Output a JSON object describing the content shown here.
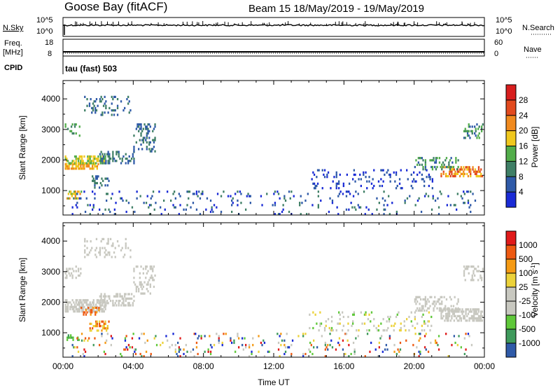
{
  "header": {
    "station": "Goose Bay (fitACF)",
    "beam_info": "Beam 15  18/May/2019 - 19/May/2019"
  },
  "noise_panel": {
    "left_label": "N.Sky",
    "left_ticks": [
      "10^5",
      "10^0"
    ],
    "right_ticks": [
      "10^5",
      "10^0"
    ],
    "right_label": "N.Search",
    "right_label_style": "dotted"
  },
  "freq_panel": {
    "left_label_line1": "Freq.",
    "left_label_line2": "[MHz]",
    "left_ticks": [
      "18",
      "8"
    ],
    "right_ticks": [
      "60",
      "0"
    ],
    "right_label": "Nave",
    "right_label_style": "dotted"
  },
  "cpid": {
    "label": "CPID",
    "value": "tau (fast) 503"
  },
  "colors": {
    "power": [
      "#1a2bd6",
      "#2f5aa8",
      "#3f7f66",
      "#52ad4a",
      "#f0c81e",
      "#f08a1e",
      "#e24a1e",
      "#d81e1e"
    ],
    "velocity": [
      "#e01a1a",
      "#ee5a12",
      "#f59a14",
      "#ecd23a",
      "#c8c8c0",
      "#c8c8c0",
      "#5fc83a",
      "#3f9a5c",
      "#2f5aa8",
      "#1a2bd6"
    ]
  },
  "chart_data": [
    {
      "type": "heatmap",
      "name": "power",
      "ylabel": "Slant Range [km]",
      "yticks": [
        "1000",
        "2000",
        "3000",
        "4000"
      ],
      "ylim": [
        200,
        4600
      ],
      "xlim": [
        0,
        24
      ],
      "colorbar_label": "Power [dB]",
      "colorbar_ticks": [
        "4",
        "8",
        "12",
        "16",
        "20",
        "24",
        "28"
      ],
      "colorbar_range": [
        0,
        32
      ],
      "blobs": [
        {
          "x": [
            0.1,
            2.0
          ],
          "y": [
            1700,
            1900
          ],
          "level": [
            4,
            5
          ],
          "density": 0.6
        },
        {
          "x": [
            0.1,
            2.4
          ],
          "y": [
            1900,
            2150
          ],
          "level": [
            3,
            4
          ],
          "density": 0.55
        },
        {
          "x": [
            2.0,
            4.0
          ],
          "y": [
            1900,
            2300
          ],
          "level": [
            1,
            2
          ],
          "density": 0.35
        },
        {
          "x": [
            4.0,
            5.2
          ],
          "y": [
            2300,
            3200
          ],
          "level": [
            1,
            2
          ],
          "density": 0.25
        },
        {
          "x": [
            0.1,
            1.0
          ],
          "y": [
            2800,
            3200
          ],
          "level": [
            2,
            3
          ],
          "density": 0.3
        },
        {
          "x": [
            1.2,
            3.8
          ],
          "y": [
            3500,
            4100
          ],
          "level": [
            1,
            2
          ],
          "density": 0.15
        },
        {
          "x": [
            0.2,
            1.0
          ],
          "y": [
            750,
            1000
          ],
          "level": [
            3,
            5
          ],
          "density": 0.35
        },
        {
          "x": [
            1.5,
            2.6
          ],
          "y": [
            1100,
            1500
          ],
          "level": [
            1,
            2
          ],
          "density": 0.25
        },
        {
          "x": [
            21.5,
            23.9
          ],
          "y": [
            1450,
            1800
          ],
          "level": [
            4,
            6
          ],
          "density": 0.5
        },
        {
          "x": [
            20.0,
            22.5
          ],
          "y": [
            1700,
            2100
          ],
          "level": [
            1,
            3
          ],
          "density": 0.3
        },
        {
          "x": [
            22.8,
            23.9
          ],
          "y": [
            2750,
            3200
          ],
          "level": [
            1,
            3
          ],
          "density": 0.3
        },
        {
          "x": [
            14.0,
            21.0
          ],
          "y": [
            1100,
            1700
          ],
          "level": [
            0,
            1
          ],
          "density": 0.12
        },
        {
          "x": [
            0.5,
            23.5
          ],
          "y": [
            250,
            1000
          ],
          "level": [
            0,
            2
          ],
          "density": 0.06
        }
      ]
    },
    {
      "type": "heatmap",
      "name": "velocity",
      "xlabel": "Time UT",
      "xticks": [
        "00:00",
        "04:00",
        "08:00",
        "12:00",
        "16:00",
        "20:00",
        "00:00"
      ],
      "ylabel": "Slant Range [km]",
      "yticks": [
        "1000",
        "2000",
        "3000",
        "4000"
      ],
      "ylim": [
        200,
        4600
      ],
      "xlim": [
        0,
        24
      ],
      "colorbar_label": "Velocity [m s^-1]",
      "colorbar_ticks": [
        "1000",
        "500",
        "100",
        "25",
        "-25",
        "-100",
        "-500",
        "-1000"
      ],
      "blobs": [
        {
          "x": [
            0.1,
            2.4
          ],
          "y": [
            1700,
            2100
          ],
          "level": [
            4,
            5
          ],
          "density": 0.6
        },
        {
          "x": [
            2.0,
            4.0
          ],
          "y": [
            1900,
            2300
          ],
          "level": [
            4,
            5
          ],
          "density": 0.35
        },
        {
          "x": [
            4.0,
            5.2
          ],
          "y": [
            2300,
            3200
          ],
          "level": [
            4,
            5
          ],
          "density": 0.25
        },
        {
          "x": [
            0.1,
            1.0
          ],
          "y": [
            2800,
            3200
          ],
          "level": [
            4,
            5
          ],
          "density": 0.3
        },
        {
          "x": [
            1.2,
            3.8
          ],
          "y": [
            3500,
            4100
          ],
          "level": [
            4,
            5
          ],
          "density": 0.15
        },
        {
          "x": [
            1.0,
            2.0
          ],
          "y": [
            1600,
            1850
          ],
          "level": [
            1,
            2
          ],
          "density": 0.35
        },
        {
          "x": [
            0.2,
            1.0
          ],
          "y": [
            750,
            950
          ],
          "level": [
            6,
            7
          ],
          "density": 0.4
        },
        {
          "x": [
            1.5,
            2.6
          ],
          "y": [
            1100,
            1400
          ],
          "level": [
            1,
            3
          ],
          "density": 0.35
        },
        {
          "x": [
            21.5,
            23.9
          ],
          "y": [
            1400,
            1800
          ],
          "level": [
            4,
            5
          ],
          "density": 0.55
        },
        {
          "x": [
            20.0,
            22.5
          ],
          "y": [
            1700,
            2200
          ],
          "level": [
            4,
            5
          ],
          "density": 0.3
        },
        {
          "x": [
            22.8,
            23.9
          ],
          "y": [
            2750,
            3200
          ],
          "level": [
            4,
            5
          ],
          "density": 0.3
        },
        {
          "x": [
            14.0,
            21.0
          ],
          "y": [
            1100,
            1700
          ],
          "level": [
            3,
            6
          ],
          "density": 0.12
        },
        {
          "x": [
            0.5,
            23.5
          ],
          "y": [
            250,
            1000
          ],
          "level": [
            0,
            9
          ],
          "density": 0.07
        }
      ]
    }
  ]
}
